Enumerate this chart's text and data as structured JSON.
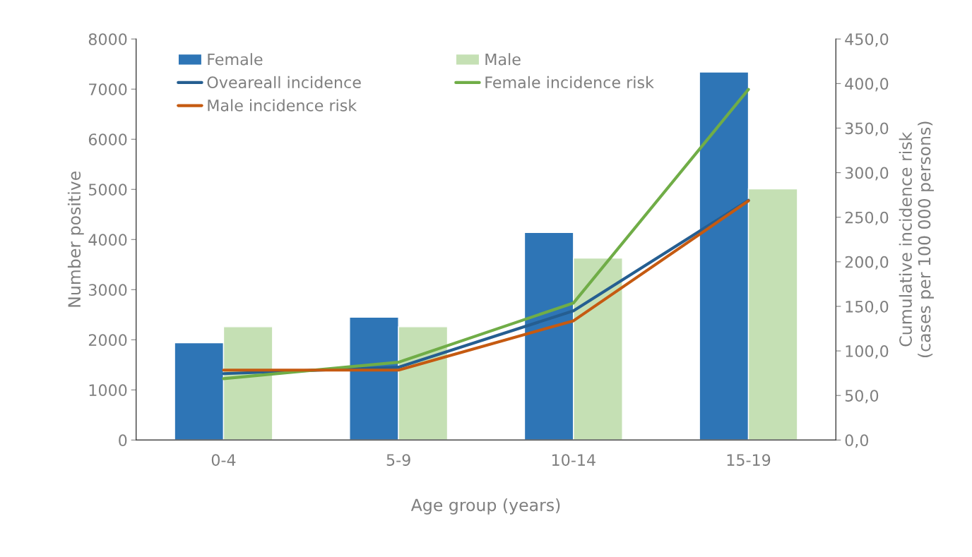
{
  "chart_data": {
    "type": "bar",
    "xlabel": "Age group (years)",
    "ylabel": "Number positive",
    "y2label": "Cumulative incidence risk\n(cases per 100 000 persons)",
    "categories": [
      "0-4",
      "5-9",
      "10-14",
      "15-19"
    ],
    "series": [
      {
        "name": "Female",
        "color": "#2e75b6",
        "values": [
          1940,
          2450,
          4140,
          7340
        ]
      },
      {
        "name": "Male",
        "color": "#c5e0b4",
        "values": [
          2260,
          2260,
          3630,
          5010
        ]
      },
      {
        "name": "Oveareall incidence",
        "type": "line",
        "axis": "y2",
        "color": "#255e91",
        "values": [
          74.5,
          81.7,
          145,
          269
        ]
      },
      {
        "name": "Female incidence risk",
        "type": "line",
        "axis": "y2",
        "color": "#70ad47",
        "values": [
          68.9,
          87.3,
          153.8,
          393.4
        ]
      },
      {
        "name": "Male incidence risk",
        "type": "line",
        "axis": "y2",
        "color": "#c55a11",
        "values": [
          78.5,
          78.5,
          133.8,
          268.4
        ]
      }
    ],
    "ylim": [
      0,
      8000
    ],
    "yticks": [
      0,
      1000,
      2000,
      3000,
      4000,
      5000,
      6000,
      7000,
      8000
    ],
    "y2lim": [
      0,
      450
    ],
    "y2ticks": [
      {
        "value": 0,
        "label": "0,0"
      },
      {
        "value": 50,
        "label": "50,0"
      },
      {
        "value": 100,
        "label": "100,0"
      },
      {
        "value": 150,
        "label": "150,0"
      },
      {
        "value": 200,
        "label": "200,0"
      },
      {
        "value": 250,
        "label": "250,0"
      },
      {
        "value": 300,
        "label": "300,0"
      },
      {
        "value": 350,
        "label": "350,0"
      },
      {
        "value": 400,
        "label": "400,0"
      },
      {
        "value": 450,
        "label": "450,0"
      }
    ],
    "legend": "top left",
    "grid": false,
    "marker": "none",
    "line_style": "solid"
  }
}
